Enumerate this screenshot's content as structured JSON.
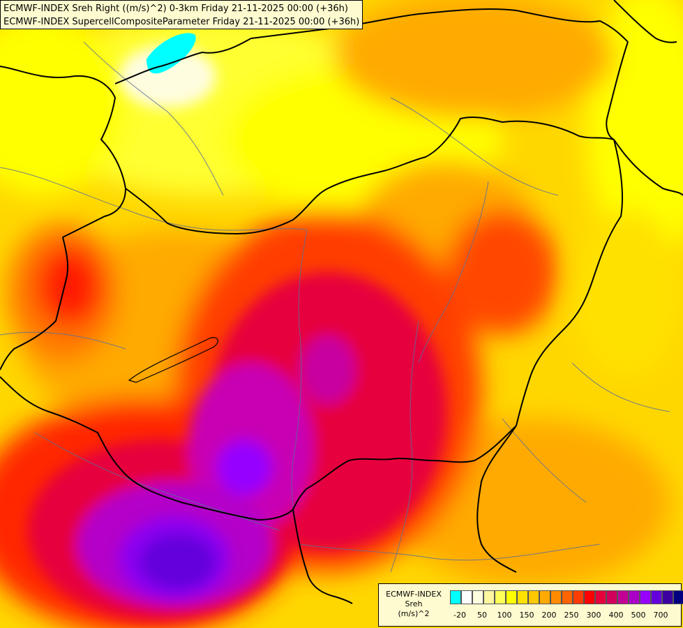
{
  "header": {
    "line1": "ECMWF-INDEX Sreh Right ((m/s)^2) 0-3km Friday 21-11-2025 00:00 (+36h)",
    "line2": "ECMWF-INDEX SupercellCompositeParameter Friday 21-11-2025 00:00 (+36h)"
  },
  "legend": {
    "title1": "ECMWF-INDEX",
    "title2": "Sreh",
    "title3": "(m/s)^2",
    "colors": [
      "#00ffff",
      "#ffffff",
      "#fffde0",
      "#fff6a0",
      "#ffff5a",
      "#ffff00",
      "#ffe100",
      "#ffc800",
      "#ffaa00",
      "#ff8c00",
      "#ff6400",
      "#ff3c00",
      "#ff0000",
      "#e6003c",
      "#d2005a",
      "#c30096",
      "#aa00c8",
      "#9600ff",
      "#6400dc",
      "#3c00a0",
      "#000080"
    ],
    "ticks": [
      "-20",
      "50",
      "100",
      "150",
      "200",
      "250",
      "300",
      "400",
      "500",
      "700"
    ]
  },
  "colors": {
    "low_cyan": "#00ffff",
    "light": "#fffde0",
    "yellow": "#ffff00",
    "orange": "#ffaa00",
    "red": "#ff0000",
    "crimson": "#e6003c",
    "magenta": "#c300b4",
    "violet": "#9600ff",
    "indigo": "#6400dc"
  }
}
